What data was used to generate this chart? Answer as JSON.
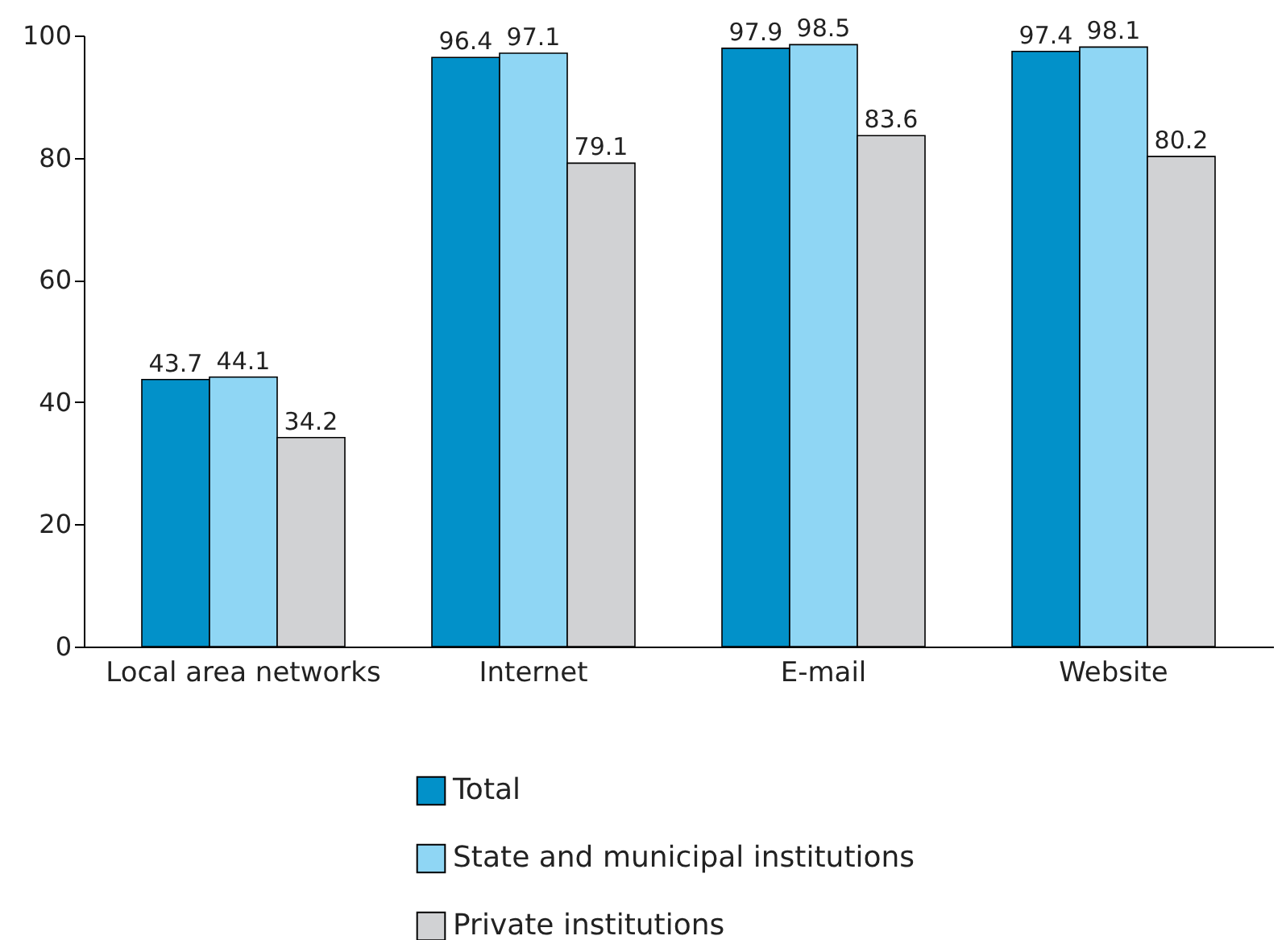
{
  "chart_data": {
    "type": "bar",
    "categories": [
      "Local area networks",
      "Internet",
      "E-mail",
      "Website"
    ],
    "series": [
      {
        "name": "Total",
        "color": "#0291c9",
        "values": [
          43.7,
          96.4,
          97.9,
          97.4
        ]
      },
      {
        "name": "State and municipal institutions",
        "color": "#8fd6f4",
        "values": [
          44.1,
          97.1,
          98.5,
          98.1
        ]
      },
      {
        "name": "Private institutions",
        "color": "#d1d2d4",
        "values": [
          34.2,
          79.1,
          83.6,
          80.2
        ]
      }
    ],
    "ylim": [
      0,
      100
    ],
    "yticks": [
      0,
      20,
      40,
      60,
      80,
      100
    ],
    "data_labels": true,
    "legend": "bottom"
  }
}
